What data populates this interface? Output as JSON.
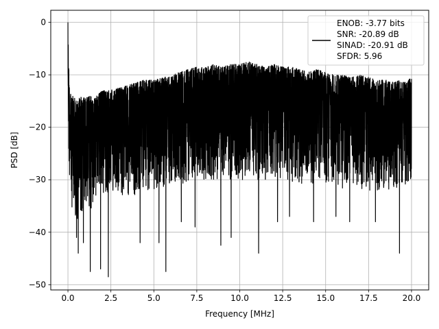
{
  "chart_data": {
    "type": "line",
    "title": "",
    "xlabel": "Frequency [MHz]",
    "ylabel": "PSD [dB]",
    "xlim": [
      -1.0,
      21.0
    ],
    "ylim": [
      -51.0,
      2.3
    ],
    "xticks": [
      0.0,
      2.5,
      5.0,
      7.5,
      10.0,
      12.5,
      15.0,
      17.5,
      20.0
    ],
    "xtick_labels": [
      "0.0",
      "2.5",
      "5.0",
      "7.5",
      "10.0",
      "12.5",
      "15.0",
      "17.5",
      "20.0"
    ],
    "yticks": [
      0,
      -10,
      -20,
      -30,
      -40,
      -50
    ],
    "ytick_labels": [
      "0",
      "−10",
      "−20",
      "−30",
      "−40",
      "−50"
    ],
    "grid": true,
    "legend": {
      "location": "top-right",
      "lines": [
        "ENOB: -3.77 bits",
        "SNR: -20.89 dB",
        "SINAD: -20.91 dB",
        "SFDR: 5.96"
      ]
    },
    "series": [
      {
        "color": "#000000",
        "description": "Dense noisy PSD trace; peak near 0 MHz at 0 dB, noise band roughly -12 to -30 dB with deep dips",
        "x": [
          0.0,
          0.05,
          0.1,
          0.15,
          0.2,
          0.3,
          0.5,
          0.7,
          1.0,
          1.3,
          1.5,
          2.0,
          2.4,
          3.0,
          3.5,
          4.0,
          4.4,
          5.0,
          5.6,
          6.0,
          6.5,
          7.0,
          7.5,
          8.0,
          8.5,
          9.0,
          9.5,
          10.0,
          10.5,
          11.0,
          11.5,
          12.0,
          12.5,
          13.0,
          13.5,
          14.0,
          14.5,
          15.0,
          15.5,
          16.0,
          16.5,
          17.0,
          17.5,
          18.0,
          18.5,
          19.0,
          19.3,
          19.6,
          20.0
        ],
        "upper": [
          0.0,
          -8.0,
          -13.0,
          -13.5,
          -14.5,
          -14.0,
          -15.0,
          -14.0,
          -14.5,
          -14.0,
          -14.5,
          -13.0,
          -13.0,
          -12.5,
          -12.0,
          -11.5,
          -11.0,
          -11.0,
          -10.5,
          -10.0,
          -9.5,
          -9.0,
          -8.5,
          -8.5,
          -8.0,
          -8.5,
          -8.0,
          -8.0,
          -7.5,
          -8.0,
          -8.5,
          -8.0,
          -8.5,
          -8.5,
          -9.0,
          -9.5,
          -9.0,
          -9.5,
          -10.0,
          -10.0,
          -10.5,
          -10.0,
          -10.5,
          -11.0,
          -11.0,
          -11.5,
          -11.0,
          -11.5,
          -10.5
        ],
        "typical_low": [
          -17.0,
          -28.0,
          -30.0,
          -34.0,
          -35.0,
          -36.0,
          -38.0,
          -37.0,
          -35.0,
          -36.0,
          -34.0,
          -34.0,
          -33.0,
          -33.0,
          -33.0,
          -33.0,
          -32.0,
          -32.0,
          -32.0,
          -31.0,
          -31.0,
          -31.0,
          -30.0,
          -30.0,
          -30.0,
          -30.0,
          -30.0,
          -30.0,
          -30.0,
          -30.0,
          -30.0,
          -30.0,
          -30.0,
          -31.0,
          -31.0,
          -31.0,
          -31.0,
          -31.0,
          -31.0,
          -32.0,
          -32.0,
          -32.0,
          -32.0,
          -32.0,
          -32.0,
          -32.0,
          -31.0,
          -31.0,
          -30.0
        ],
        "dips": [
          [
            0.5,
            -41.0
          ],
          [
            0.6,
            -44.0
          ],
          [
            0.9,
            -42.0
          ],
          [
            1.3,
            -47.5
          ],
          [
            1.9,
            -47.0
          ],
          [
            2.35,
            -48.5
          ],
          [
            4.2,
            -42.0
          ],
          [
            5.3,
            -42.0
          ],
          [
            5.7,
            -47.5
          ],
          [
            6.6,
            -38.0
          ],
          [
            7.4,
            -39.0
          ],
          [
            8.9,
            -42.5
          ],
          [
            9.5,
            -41.0
          ],
          [
            11.1,
            -44.0
          ],
          [
            12.2,
            -38.0
          ],
          [
            12.9,
            -37.0
          ],
          [
            14.3,
            -38.0
          ],
          [
            15.6,
            -37.0
          ],
          [
            16.4,
            -38.0
          ],
          [
            17.9,
            -38.0
          ],
          [
            19.3,
            -44.0
          ]
        ]
      }
    ]
  }
}
